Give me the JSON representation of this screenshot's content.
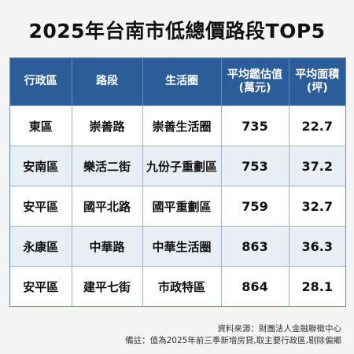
{
  "title": "2025年台南市低總價路段TOP5",
  "table": {
    "headers": {
      "district": "行政區",
      "road": "路段",
      "zone": "生活圈",
      "price_l1": "平均鑑估值",
      "price_l2": "(萬元)",
      "area_l1": "平均面積",
      "area_l2": "(坪)"
    },
    "rows": [
      {
        "district": "東區",
        "road": "崇善路",
        "zone": "崇善生活圈",
        "price": "735",
        "area": "22.7"
      },
      {
        "district": "安南區",
        "road": "樂活二街",
        "zone": "九份子重劃區",
        "price": "753",
        "area": "37.2"
      },
      {
        "district": "安平區",
        "road": "國平北路",
        "zone": "國平重劃區",
        "price": "759",
        "area": "32.7"
      },
      {
        "district": "永康區",
        "road": "中華路",
        "zone": "中華生活圈",
        "price": "863",
        "area": "36.3"
      },
      {
        "district": "安平區",
        "road": "建平七街",
        "zone": "市政特區",
        "price": "864",
        "area": "28.1"
      }
    ]
  },
  "footer": {
    "source": "資料來源：財團法人金融聯徵中心",
    "note": "備註：值為2025年前三季新增房貸,取主要行政區,剔除偏鄉"
  }
}
